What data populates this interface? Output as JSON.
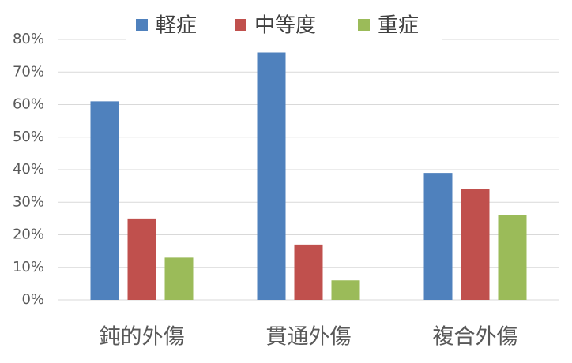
{
  "chart_data": {
    "type": "bar",
    "categories": [
      "鈍的外傷",
      "貫通外傷",
      "複合外傷"
    ],
    "series": [
      {
        "name": "軽症",
        "color": "#4f81bd",
        "values": [
          61,
          76,
          39
        ]
      },
      {
        "name": "中等度",
        "color": "#c0504d",
        "values": [
          25,
          17,
          34
        ]
      },
      {
        "name": "重症",
        "color": "#9bbb59",
        "values": [
          13,
          6,
          26
        ]
      }
    ],
    "ylim": [
      0,
      80
    ],
    "yticks": [
      {
        "value": 0,
        "label": "0%"
      },
      {
        "value": 10,
        "label": "10%"
      },
      {
        "value": 20,
        "label": "20%"
      },
      {
        "value": 30,
        "label": "30%"
      },
      {
        "value": 40,
        "label": "40%"
      },
      {
        "value": 50,
        "label": "50%"
      },
      {
        "value": 60,
        "label": "60%"
      },
      {
        "value": 70,
        "label": "70%"
      },
      {
        "value": 80,
        "label": "80%"
      }
    ],
    "grid": true,
    "legend": "top"
  }
}
